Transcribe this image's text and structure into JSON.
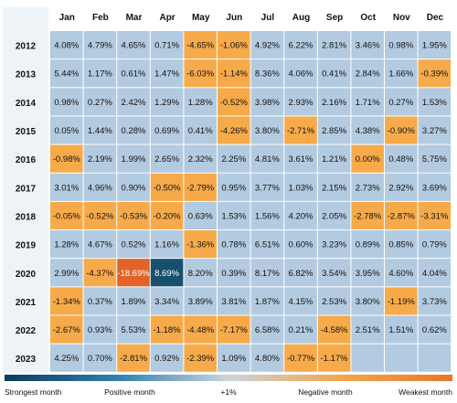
{
  "chart_data": {
    "type": "heatmap",
    "months": [
      "Jan",
      "Feb",
      "Mar",
      "Apr",
      "May",
      "Jun",
      "Jul",
      "Aug",
      "Sep",
      "Oct",
      "Nov",
      "Dec"
    ],
    "years": [
      "2012",
      "2013",
      "2014",
      "2015",
      "2016",
      "2017",
      "2018",
      "2019",
      "2020",
      "2021",
      "2022",
      "2023"
    ],
    "values": [
      [
        "4.08%",
        "4.79%",
        "4.65%",
        "0.71%",
        "-4.65%",
        "-1.06%",
        "4.92%",
        "6.22%",
        "2.81%",
        "3.46%",
        "0.98%",
        "1.95%"
      ],
      [
        "5.44%",
        "1.17%",
        "0.61%",
        "1.47%",
        "-6.03%",
        "-1.14%",
        "8.36%",
        "4.06%",
        "0.41%",
        "2.84%",
        "1.66%",
        "-0.39%"
      ],
      [
        "0.98%",
        "0.27%",
        "2.42%",
        "1.29%",
        "1.28%",
        "-0.52%",
        "3.98%",
        "2.93%",
        "2.16%",
        "1.71%",
        "0.27%",
        "1.53%"
      ],
      [
        "0.05%",
        "1.44%",
        "0.28%",
        "0.69%",
        "0.41%",
        "-4.26%",
        "3.80%",
        "-2.71%",
        "2.85%",
        "4.38%",
        "-0.90%",
        "3.27%"
      ],
      [
        "-0.98%",
        "2.19%",
        "1.99%",
        "2.65%",
        "2.32%",
        "2.25%",
        "4.81%",
        "3.61%",
        "1.21%",
        "0.00%",
        "0.48%",
        "5.75%"
      ],
      [
        "3.01%",
        "4.96%",
        "0.90%",
        "-0.50%",
        "-2.79%",
        "0.95%",
        "3.77%",
        "1.03%",
        "2.15%",
        "2.73%",
        "2.92%",
        "3.69%"
      ],
      [
        "-0.05%",
        "-0.52%",
        "-0.53%",
        "-0.20%",
        "0.63%",
        "1.53%",
        "1.56%",
        "4.20%",
        "2.05%",
        "-2.78%",
        "-2.87%",
        "-3.31%"
      ],
      [
        "1.28%",
        "4.67%",
        "0.52%",
        "1.16%",
        "-1.36%",
        "0.78%",
        "6.51%",
        "0.60%",
        "3.23%",
        "0.89%",
        "0.85%",
        "0.79%"
      ],
      [
        "2.99%",
        "-4.37%",
        "-18.69%",
        "8.69%",
        "8.20%",
        "0.39%",
        "8.17%",
        "6.82%",
        "3.54%",
        "3.95%",
        "4.60%",
        "4.04%"
      ],
      [
        "-1.34%",
        "0.37%",
        "1.89%",
        "3.34%",
        "3.89%",
        "3.81%",
        "1.87%",
        "4.15%",
        "2.53%",
        "3.80%",
        "-1.19%",
        "3.73%"
      ],
      [
        "-2.67%",
        "0.93%",
        "5.53%",
        "-1.18%",
        "-4.48%",
        "-7.17%",
        "6.58%",
        "0.21%",
        "-4.58%",
        "2.51%",
        "1.51%",
        "0.62%"
      ],
      [
        "4.25%",
        "0.70%",
        "-2.81%",
        "0.92%",
        "-2.39%",
        "1.09%",
        "4.80%",
        "-0.77%",
        "-1.17%",
        "",
        "",
        ""
      ]
    ],
    "colors": {
      "positive": "#b3cbe0",
      "negative": "#f7aa4a",
      "empty": "#b3cbe0",
      "strongest": "#17506e",
      "weakest": "#e16328",
      "year_column_bg": "#eef3f8",
      "legend_gradient": [
        "#0b3c5b",
        "#2f7fb0",
        "#c9d4dc",
        "#f3a64a",
        "#e9762a"
      ]
    },
    "legend": {
      "labels": [
        "Strongest month",
        "Positive month",
        "+1%",
        "Negative month",
        "Weakest month"
      ],
      "placement": "bottom"
    }
  }
}
